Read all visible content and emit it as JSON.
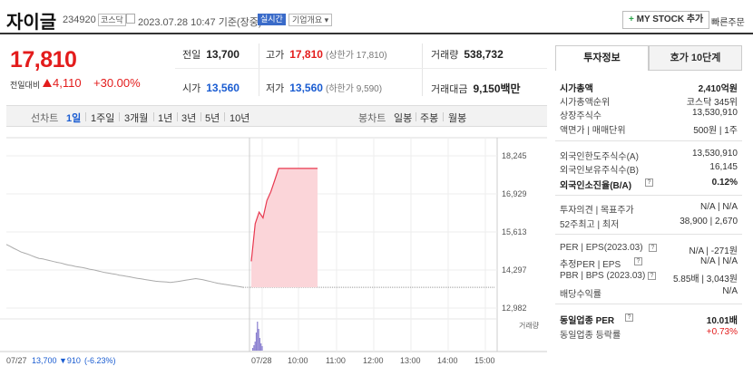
{
  "header": {
    "name": "자이글",
    "code": "234920",
    "market": "코스닥",
    "datetime": "2023.07.28 10:47 기준(장중)",
    "realtime": "실시간",
    "overview": "기업개요 ▾",
    "mystock": "MY STOCK 추가",
    "quick_order": "빠른주문"
  },
  "price": {
    "current": "17,810",
    "prev_label": "전일대비",
    "change": "4,110",
    "percent": "+30.00%"
  },
  "summary": {
    "prev": {
      "label": "전일",
      "value": "13,700"
    },
    "high": {
      "label": "고가",
      "value": "17,810",
      "sub": "(상한가 17,810)"
    },
    "volume": {
      "label": "거래량",
      "value": "538,732"
    },
    "open": {
      "label": "시가",
      "value": "13,560"
    },
    "low": {
      "label": "저가",
      "value": "13,560",
      "sub": "(하한가 9,590)"
    },
    "amount": {
      "label": "거래대금",
      "value": "9,150",
      "unit": "백만"
    }
  },
  "tabs": {
    "line_label": "선차트",
    "periods": [
      "1일",
      "1주일",
      "3개월",
      "1년",
      "3년",
      "5년",
      "10년"
    ],
    "candle_label": "봉차트",
    "candles": [
      "일봉",
      "주봉",
      "월봉"
    ]
  },
  "chart_data": {
    "type": "line",
    "y_ticks": [
      "18,245",
      "16,929",
      "15,613",
      "14,297",
      "12,982"
    ],
    "ylim": [
      12982,
      18245
    ],
    "x_ticks": [
      "07/28",
      "10:00",
      "11:00",
      "12:00",
      "13:00",
      "14:00",
      "15:00"
    ],
    "volume_label": "거래량",
    "prev_day": {
      "date": "07/27",
      "close": "13,700",
      "change": "▼910",
      "percent": "(-6.23%)"
    },
    "series": [
      {
        "values": [
          15180,
          15120,
          15050,
          14990,
          14920,
          14880,
          14840,
          14790,
          14740,
          14700,
          14680,
          14650,
          14620,
          14590,
          14560,
          14540,
          14500,
          14470,
          14450,
          14420,
          14400,
          14380,
          14350,
          14320,
          14300,
          14270,
          14240,
          14210,
          14190,
          14170,
          14150,
          14120,
          14100,
          14080,
          14060,
          14030,
          14010,
          13990,
          13970,
          13950,
          13930,
          13910,
          13900,
          13890,
          13880,
          13870,
          13880,
          13900,
          13920,
          13940,
          13960,
          13980,
          14000,
          13980,
          13960,
          13930,
          13900,
          13870,
          13840,
          13820,
          13800,
          13780,
          13760,
          13740,
          13720,
          13700
        ]
      },
      {
        "values": [
          14600,
          15900,
          16300,
          16100,
          16700,
          17000,
          17400,
          17810,
          17810,
          17810,
          17810,
          17810,
          17810,
          17810,
          17810,
          17810,
          17810,
          17810
        ]
      }
    ],
    "prev_close": 13700
  },
  "right_panel": {
    "tab_info": "투자정보",
    "tab_order": "호가 10단계",
    "rows": [
      {
        "k": "시가총액",
        "v": "2,410억원",
        "bold": true
      },
      {
        "k": "시가총액순위",
        "v": "코스닥 345위"
      },
      {
        "k": "상장주식수",
        "v": "13,530,910"
      },
      {
        "k": "액면가 | 매매단위",
        "v": "500원 | 1주"
      },
      {
        "k": "외국인한도주식수(A)",
        "v": "13,530,910"
      },
      {
        "k": "외국인보유주식수(B)",
        "v": "16,145"
      },
      {
        "k": "외국인소진율(B/A)",
        "v": "0.12%",
        "bold": true
      },
      {
        "k": "투자의견 | 목표주가",
        "v": "N/A | N/A"
      },
      {
        "k": "52주최고 | 최저",
        "v": "38,900 | 2,670"
      },
      {
        "k": "PER | EPS(2023.03)",
        "v": "N/A | -271원"
      },
      {
        "k": "추정PER | EPS",
        "v": "N/A | N/A"
      },
      {
        "k": "PBR | BPS (2023.03)",
        "v": "5.85배 | 3,043원"
      },
      {
        "k": "배당수익률",
        "v": "N/A"
      },
      {
        "k": "동일업종 PER",
        "v": "10.01배",
        "bold": true
      },
      {
        "k": "동일업종 등락률",
        "v": "+0.73%",
        "up": true
      }
    ]
  }
}
